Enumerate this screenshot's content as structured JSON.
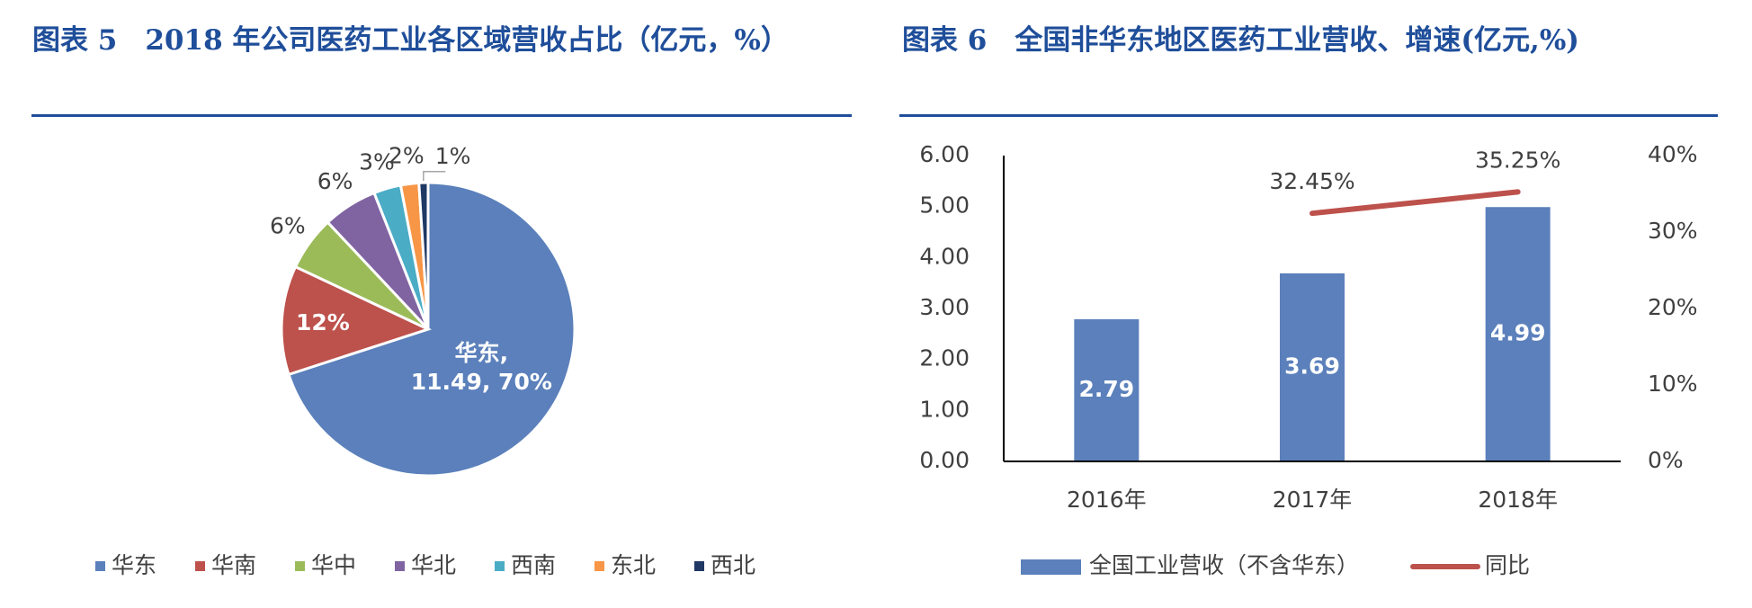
{
  "chart_data": [
    {
      "type": "pie",
      "title": "图表 5　2018 年公司医药工业各区域营收占比（亿元，%）",
      "categories": [
        "华东",
        "华南",
        "华中",
        "华北",
        "西南",
        "东北",
        "西北"
      ],
      "values": [
        70,
        12,
        6,
        6,
        3,
        2,
        1
      ],
      "value_labels": [
        "华东,\n11.49, 70%",
        "12%",
        "6%",
        "6%",
        "3%",
        "2%",
        "1%"
      ],
      "colors": [
        "#5b80bb",
        "#bd514c",
        "#9bbb59",
        "#8064a2",
        "#4bacc6",
        "#f79646",
        "#1f3864"
      ],
      "legend": "bottom"
    },
    {
      "type": "bar-line",
      "title": "图表 6　全国非华东地区医药工业营收、增速(亿元,%)",
      "categories": [
        "2016年",
        "2017年",
        "2018年"
      ],
      "series": [
        {
          "name": "全国工业营收（不含华东）",
          "type": "bar",
          "color": "#5b80bb",
          "values": [
            2.79,
            3.69,
            4.99
          ]
        },
        {
          "name": "同比",
          "type": "line",
          "axis": "y2",
          "color": "#bd514c",
          "values": [
            null,
            32.45,
            35.25
          ],
          "value_labels": [
            null,
            "32.45%",
            "35.25%"
          ]
        }
      ],
      "ylim": [
        0,
        6
      ],
      "yticks": [
        {
          "value": 0,
          "label": "0.00"
        },
        {
          "value": 1,
          "label": "1.00"
        },
        {
          "value": 2,
          "label": "2.00"
        },
        {
          "value": 3,
          "label": "3.00"
        },
        {
          "value": 4,
          "label": "4.00"
        },
        {
          "value": 5,
          "label": "5.00"
        },
        {
          "value": 6,
          "label": "6.00"
        }
      ],
      "y2lim": [
        0,
        40
      ],
      "y2ticks": [
        {
          "value": 0,
          "label": "0%"
        },
        {
          "value": 10,
          "label": "10%"
        },
        {
          "value": 20,
          "label": "20%"
        },
        {
          "value": 30,
          "label": "30%"
        },
        {
          "value": 40,
          "label": "40%"
        }
      ],
      "legend": "bottom"
    }
  ]
}
